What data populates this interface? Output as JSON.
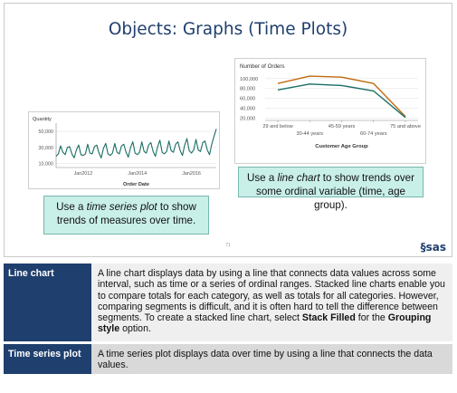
{
  "slide": {
    "title": "Objects: Graphs (Time Plots)",
    "page_number": "71",
    "logo_text": "sas",
    "callout_time_series": {
      "before": "Use a ",
      "emphasis": "time series plot",
      "after": " to show trends of measures over time."
    },
    "callout_line_chart": {
      "before": "Use a ",
      "emphasis": "line chart",
      "after": " to show trends over some ordinal variable (time, age group)."
    }
  },
  "chart_data": [
    {
      "type": "line",
      "title": "",
      "ylabel": "Quantity",
      "xlabel": "Order Date",
      "yticks": [
        "10,000",
        "30,000",
        "50,000"
      ],
      "ylim": [
        5000,
        58000
      ],
      "xticks": [
        "Jan2012",
        "Jan2014",
        "Jan2016"
      ],
      "xlim": [
        "2011-01",
        "2016-12"
      ],
      "grid": true,
      "series": [
        {
          "color": "#1a6e66",
          "values": [
            19000,
            22000,
            32000,
            24000,
            21000,
            30000,
            31000,
            22000,
            17000,
            27000,
            33000,
            21000,
            20000,
            22000,
            34000,
            23000,
            22000,
            31000,
            33000,
            23000,
            17000,
            29000,
            35000,
            22000,
            20000,
            23000,
            35000,
            24000,
            22000,
            32000,
            34000,
            24000,
            18000,
            30000,
            37000,
            23000,
            21000,
            24000,
            37000,
            25000,
            23000,
            33000,
            36000,
            25000,
            19000,
            31000,
            39000,
            24000,
            22000,
            25000,
            38000,
            26000,
            24000,
            34000,
            37000,
            26000,
            20000,
            33000,
            41000,
            26000,
            23000,
            27000,
            40000,
            27000,
            25000,
            36000,
            38000,
            27000,
            21000,
            34000,
            44000,
            53000
          ]
        }
      ]
    },
    {
      "type": "line",
      "title": "Number of Orders",
      "xlabel": "Customer Age Group",
      "ylabel": "",
      "categories": [
        "29 and below",
        "30-44 years",
        "45-59 years",
        "60-74 years",
        "75 and above"
      ],
      "yticks": [
        "20,000",
        "40,000",
        "60,000",
        "80,000",
        "100,000"
      ],
      "ylim": [
        15000,
        107000
      ],
      "grid": true,
      "series": [
        {
          "color": "#c06a10",
          "values": [
            90000,
            105000,
            103000,
            90000,
            23000
          ]
        },
        {
          "color": "#1a6e66",
          "values": [
            77000,
            89000,
            86000,
            75000,
            21000
          ]
        }
      ]
    }
  ],
  "definitions": {
    "line_chart": {
      "term": "Line chart",
      "text_1": "A line chart displays data by using a line that connects data values across some interval, such as time or a series of ordinal ranges. Stacked line charts enable you to compare totals for each category, as well as totals for all categories. However, comparing segments is difficult, and it is often hard to tell the difference between segments. To create a stacked line chart, select ",
      "bold_1": "Stack Filled",
      "text_2": " for the ",
      "bold_2": "Grouping style",
      "text_3": " option."
    },
    "time_series_plot": {
      "term": "Time series plot",
      "text": "A time series plot displays data over time by using a line that connects the data values."
    }
  }
}
